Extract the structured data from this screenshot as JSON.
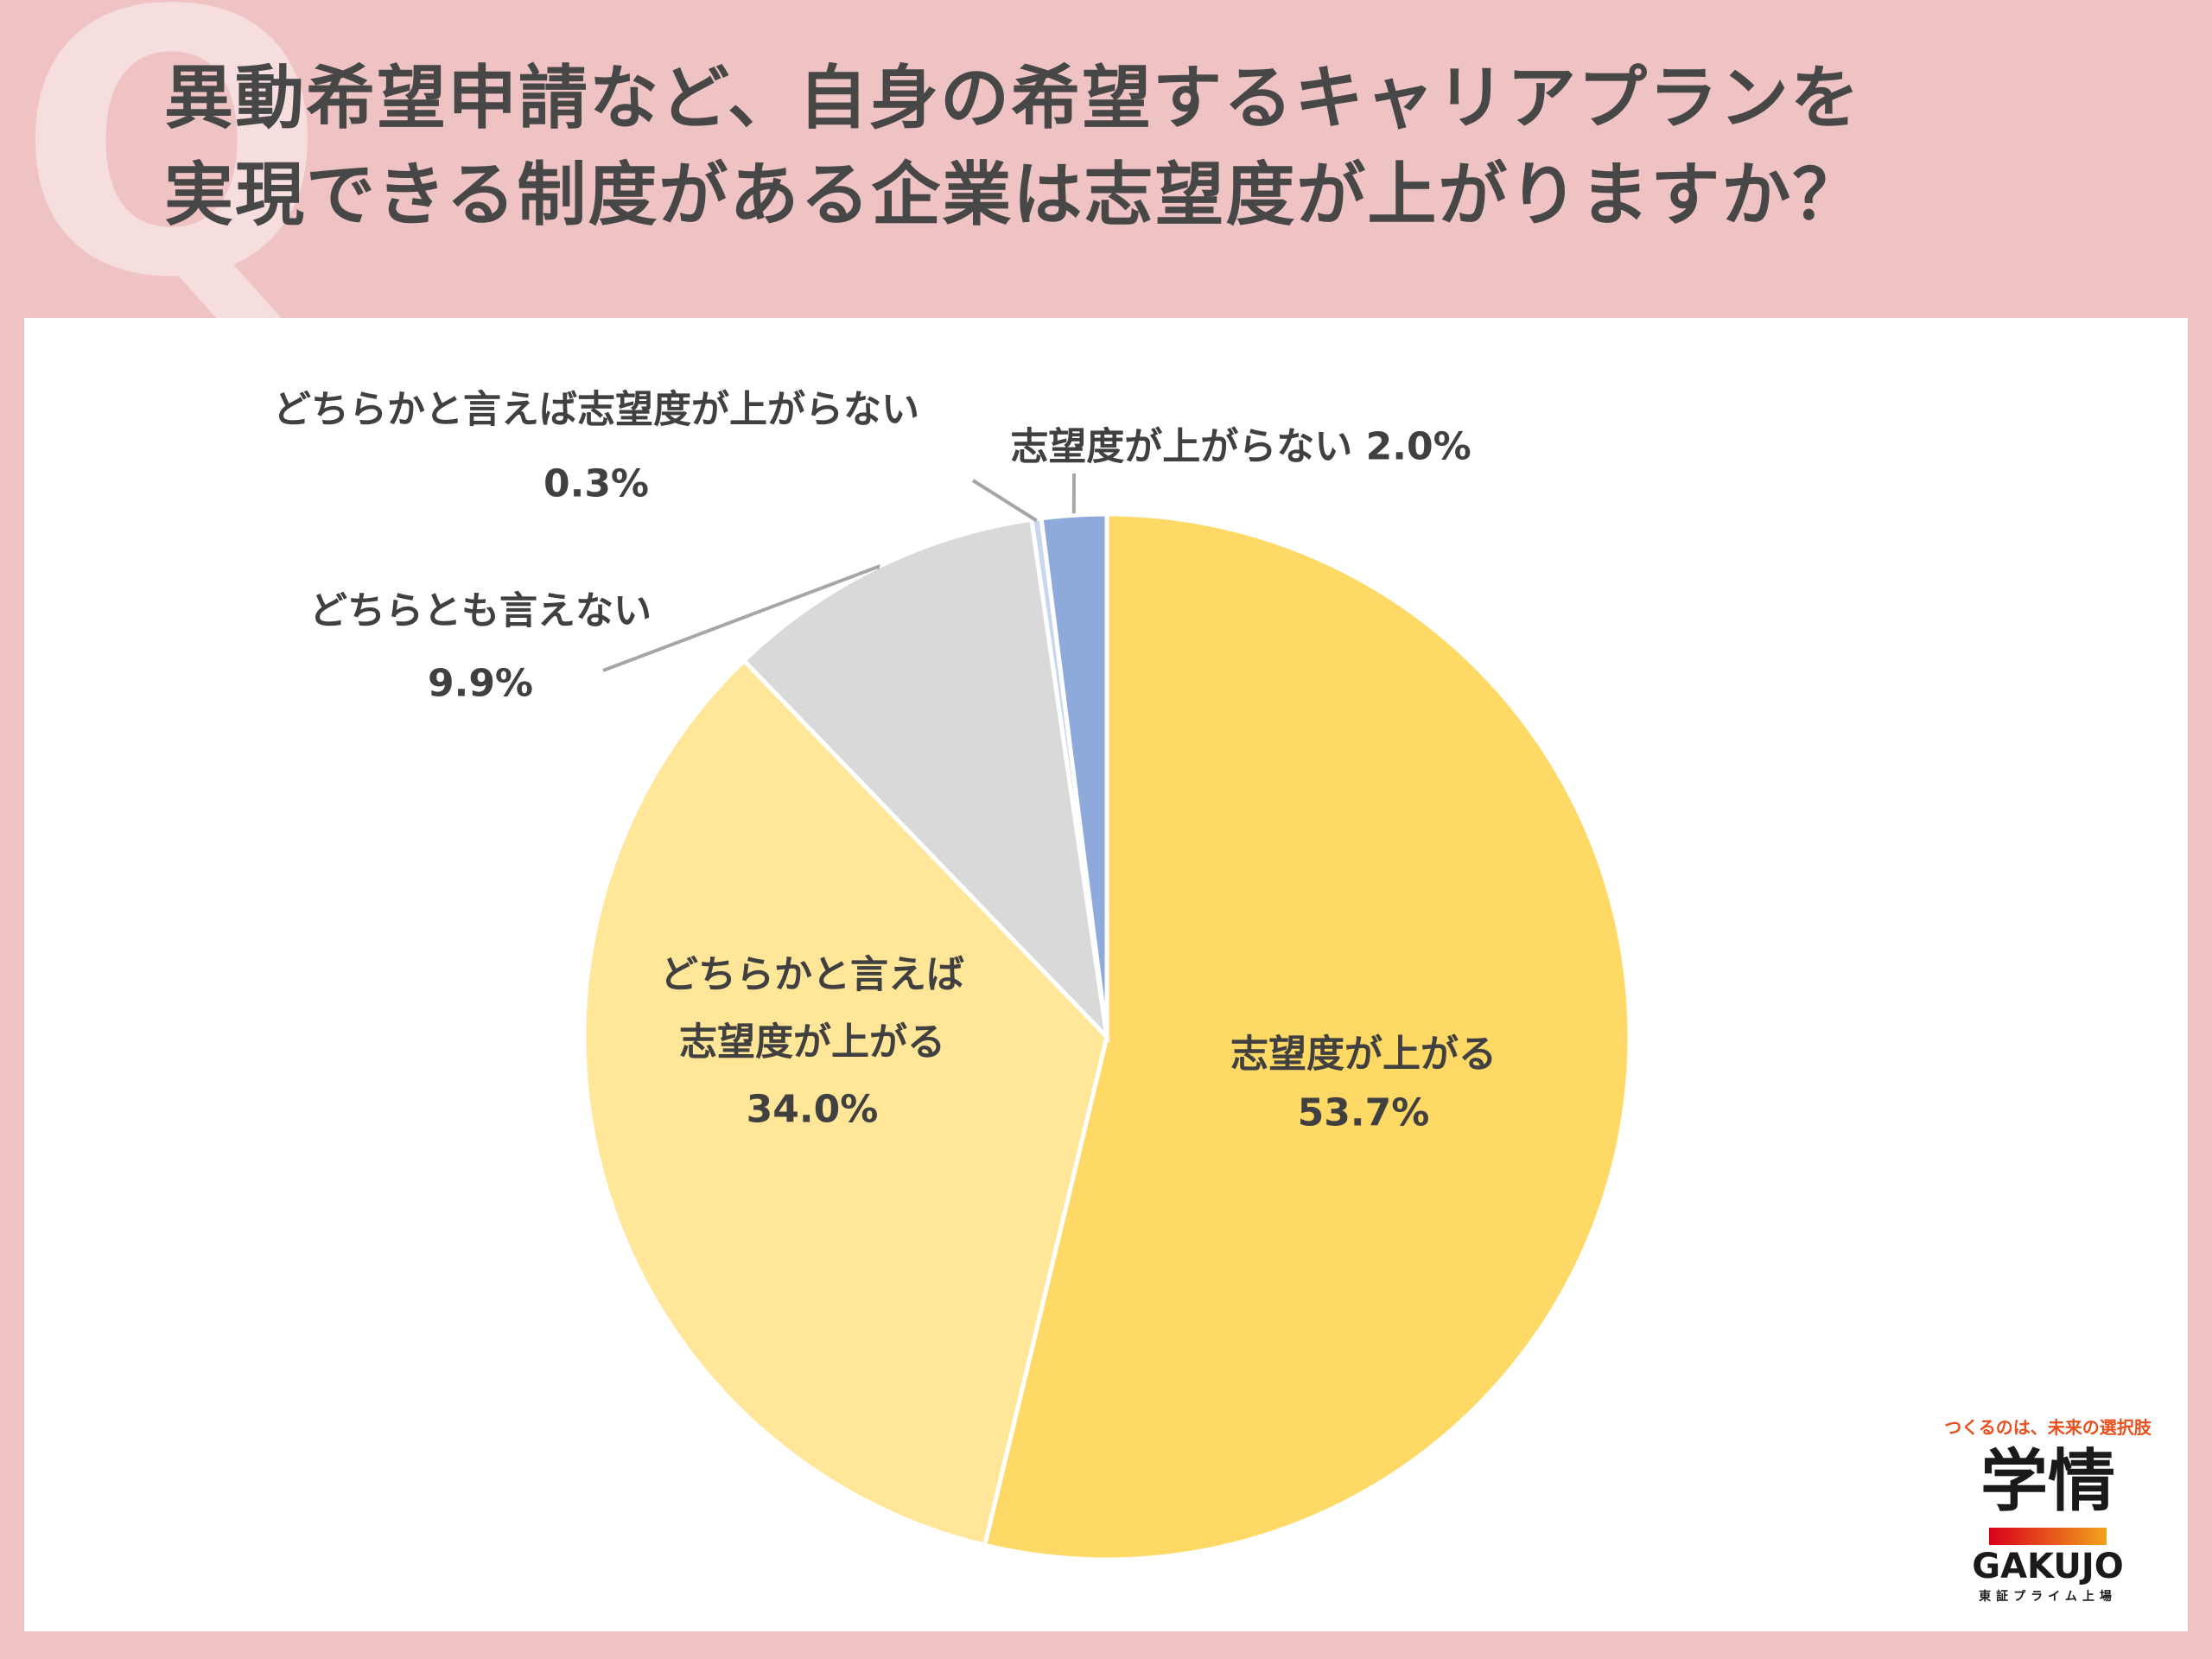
{
  "header": {
    "q_mark": "Q",
    "title_line1": "異動希望申請など、自身の希望するキャリアプランを",
    "title_line2": "実現できる制度がある企業は志望度が上がりますか？"
  },
  "chart_data": {
    "type": "pie",
    "start_angle_deg": 0,
    "direction": "clockwise",
    "slices": [
      {
        "label": "志望度が上がる",
        "value": 53.7,
        "value_text": "53.7%",
        "color": "#fed966"
      },
      {
        "label": "どちらかと言えば志望度が上がる",
        "value": 34.0,
        "value_text": "34.0%",
        "color": "#ffe698"
      },
      {
        "label": "どちらとも言えない",
        "value": 9.9,
        "value_text": "9.9%",
        "color": "#d9d9d9"
      },
      {
        "label": "どちらかと言えば志望度が上がらない",
        "value": 0.3,
        "value_text": "0.3%",
        "color": "#c9d7ee"
      },
      {
        "label": "志望度が上がらない",
        "value": 2.0,
        "value_text": "2.0%",
        "color": "#8eaadb"
      }
    ],
    "labels": [
      {
        "lines": [
          "志望度が上がる",
          "53.7%"
        ]
      },
      {
        "lines": [
          "どちらかと言えば",
          "志望度が上がる",
          "34.0%"
        ]
      },
      {
        "lines": [
          "どちらとも言えない",
          "9.9%"
        ]
      },
      {
        "lines": [
          "どちらかと言えば志望度が上がらない",
          "0.3%"
        ]
      },
      {
        "lines": [
          "志望度が上がらない 2.0%"
        ]
      }
    ],
    "legend": "none"
  },
  "logo": {
    "tagline": "つくるのは、未来の選択肢",
    "kanji": "学情",
    "name": "GAKUJO",
    "sub": "東証プライム上場"
  }
}
